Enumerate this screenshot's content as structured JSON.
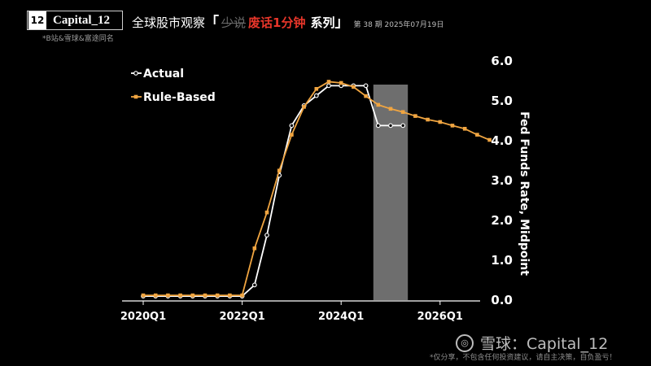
{
  "header": {
    "brand_logo": "12",
    "brand_name": "Capital_12",
    "sub_note": "*B站&雪球&富途同名",
    "title_main": "全球股市观察",
    "bracket_open": "「",
    "strike_text": "少说",
    "red_text": "废话1分钟",
    "series_text": "系列",
    "bracket_close": "」",
    "issue": "第 38 期 2025年07月19日"
  },
  "watermark": {
    "icon": "snowball-logo-icon",
    "text": "雪球：Capital_12",
    "disclaimer": "*仅分享，不包含任何投资建议，请自主决策，自负盈亏！"
  },
  "colors": {
    "actual": "#ffffff",
    "rule_based": "#f0a541",
    "shade": "#6e6e6e"
  },
  "chart_data": {
    "type": "line",
    "x_tick_labels": [
      "2020Q1",
      "2022Q1",
      "2024Q1",
      "2026Q1"
    ],
    "ylabel": "Fed Funds Rate, Midpoint",
    "y_tick_labels": [
      "0.0",
      "1.0",
      "2.0",
      "3.0",
      "4.0",
      "5.0",
      "6.0"
    ],
    "ylim": [
      0,
      6
    ],
    "grid": false,
    "legend": "top-left",
    "shaded_region": [
      "2024Q4",
      "2025Q2"
    ],
    "series": [
      {
        "name": "Actual",
        "x": [
          "2020Q1",
          "2020Q2",
          "2020Q3",
          "2020Q4",
          "2021Q1",
          "2021Q2",
          "2021Q3",
          "2021Q4",
          "2022Q1",
          "2022Q2",
          "2022Q3",
          "2022Q4",
          "2023Q1",
          "2023Q2",
          "2023Q3",
          "2023Q4",
          "2024Q1",
          "2024Q2",
          "2024Q3",
          "2024Q4",
          "2025Q1",
          "2025Q2"
        ],
        "values": [
          0.1,
          0.1,
          0.1,
          0.1,
          0.1,
          0.1,
          0.1,
          0.1,
          0.1,
          0.38,
          1.63,
          3.13,
          4.38,
          4.88,
          5.13,
          5.38,
          5.38,
          5.38,
          5.38,
          4.38,
          4.38,
          4.38
        ]
      },
      {
        "name": "Rule-Based",
        "x": [
          "2020Q1",
          "2020Q2",
          "2020Q3",
          "2020Q4",
          "2021Q1",
          "2021Q2",
          "2021Q3",
          "2021Q4",
          "2022Q1",
          "2022Q2",
          "2022Q3",
          "2022Q4",
          "2023Q1",
          "2023Q2",
          "2023Q3",
          "2023Q4",
          "2024Q1",
          "2024Q2",
          "2024Q3",
          "2024Q4",
          "2025Q1",
          "2025Q2",
          "2025Q3",
          "2025Q4",
          "2026Q1",
          "2026Q2",
          "2026Q3",
          "2026Q4",
          "2027Q1"
        ],
        "values": [
          0.12,
          0.12,
          0.12,
          0.12,
          0.12,
          0.12,
          0.12,
          0.12,
          0.12,
          1.3,
          2.2,
          3.25,
          4.15,
          4.85,
          5.3,
          5.48,
          5.45,
          5.35,
          5.12,
          4.9,
          4.8,
          4.72,
          4.62,
          4.53,
          4.47,
          4.38,
          4.3,
          4.15,
          4.02
        ]
      }
    ]
  }
}
